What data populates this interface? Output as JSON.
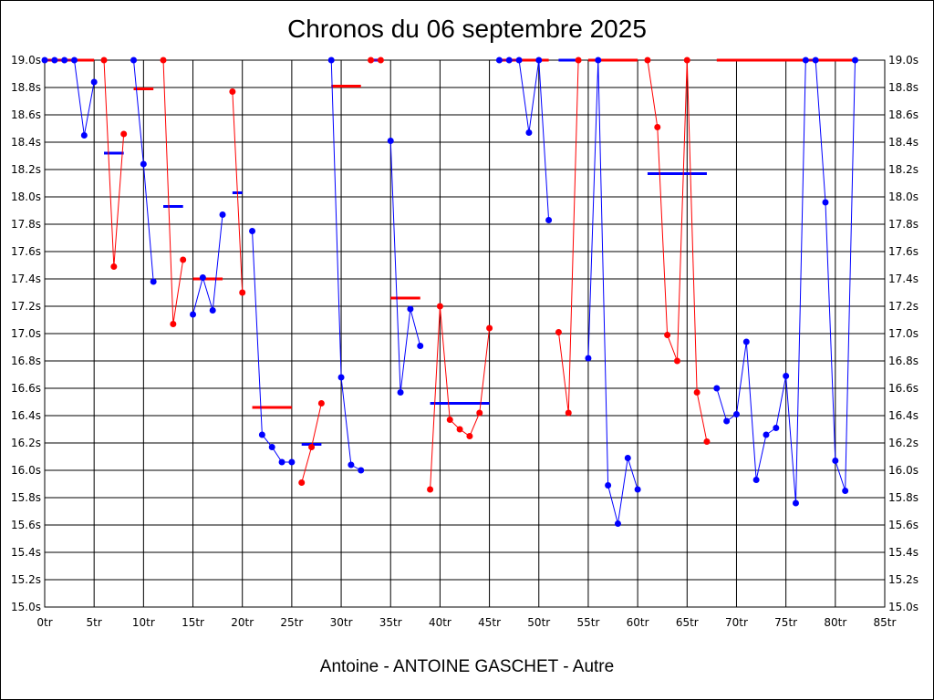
{
  "chart_data": {
    "type": "line",
    "title": "Chronos du 06 septembre 2025",
    "xlabel": "Antoine - ANTOINE GASCHET - Autre",
    "ylabel": "",
    "xlim": [
      0,
      85
    ],
    "ylim": [
      15.0,
      19.0
    ],
    "x_ticks": [
      0,
      5,
      10,
      15,
      20,
      25,
      30,
      35,
      40,
      45,
      50,
      55,
      60,
      65,
      70,
      75,
      80,
      85
    ],
    "x_tick_labels": [
      "0tr",
      "5tr",
      "10tr",
      "15tr",
      "20tr",
      "25tr",
      "30tr",
      "35tr",
      "40tr",
      "45tr",
      "50tr",
      "55tr",
      "60tr",
      "65tr",
      "70tr",
      "75tr",
      "80tr",
      "85tr"
    ],
    "y_ticks": [
      15.0,
      15.2,
      15.4,
      15.6,
      15.8,
      16.0,
      16.2,
      16.4,
      16.6,
      16.8,
      17.0,
      17.2,
      17.4,
      17.6,
      17.8,
      18.0,
      18.2,
      18.4,
      18.6,
      18.8,
      19.0
    ],
    "y_tick_labels": [
      "15.0s",
      "15.2s",
      "15.4s",
      "15.6s",
      "15.8s",
      "16.0s",
      "16.2s",
      "16.4s",
      "16.6s",
      "16.8s",
      "17.0s",
      "17.2s",
      "17.4s",
      "17.6s",
      "17.8s",
      "18.0s",
      "18.2s",
      "18.4s",
      "18.6s",
      "18.8s",
      "19.0s"
    ],
    "grid": true,
    "colors": {
      "blue": "#0000ff",
      "red": "#ff0000",
      "grid": "#000000"
    },
    "series": [
      {
        "color": "#0000ff",
        "points": [
          [
            0,
            19.0
          ],
          [
            1,
            19.0
          ],
          [
            2,
            19.0
          ],
          [
            3,
            19.0
          ],
          [
            4,
            18.45
          ],
          [
            5,
            18.84
          ]
        ]
      },
      {
        "color": "#ff0000",
        "points": [
          [
            6,
            19.0
          ],
          [
            7,
            17.49
          ],
          [
            8,
            18.46
          ]
        ]
      },
      {
        "color": "#0000ff",
        "points": [
          [
            9,
            19.0
          ],
          [
            10,
            18.24
          ],
          [
            11,
            17.38
          ]
        ]
      },
      {
        "color": "#ff0000",
        "points": [
          [
            12,
            19.0
          ],
          [
            13,
            17.07
          ],
          [
            14,
            17.54
          ]
        ]
      },
      {
        "color": "#0000ff",
        "points": [
          [
            15,
            17.14
          ],
          [
            16,
            17.41
          ],
          [
            17,
            17.17
          ],
          [
            18,
            17.87
          ]
        ]
      },
      {
        "color": "#ff0000",
        "points": [
          [
            19,
            18.77
          ],
          [
            20,
            17.3
          ]
        ]
      },
      {
        "color": "#0000ff",
        "points": [
          [
            21,
            17.75
          ],
          [
            22,
            16.26
          ],
          [
            23,
            16.17
          ],
          [
            24,
            16.06
          ],
          [
            25,
            16.06
          ]
        ]
      },
      {
        "color": "#ff0000",
        "points": [
          [
            26,
            15.91
          ],
          [
            27,
            16.17
          ],
          [
            28,
            16.49
          ]
        ]
      },
      {
        "color": "#0000ff",
        "points": [
          [
            29,
            19.0
          ],
          [
            30,
            16.68
          ],
          [
            31,
            16.04
          ],
          [
            32,
            16.0
          ]
        ]
      },
      {
        "color": "#ff0000",
        "points": [
          [
            33,
            19.0
          ],
          [
            34,
            19.0
          ]
        ]
      },
      {
        "color": "#0000ff",
        "points": [
          [
            35,
            18.41
          ],
          [
            36,
            16.57
          ],
          [
            37,
            17.18
          ],
          [
            38,
            16.91
          ]
        ]
      },
      {
        "color": "#ff0000",
        "points": [
          [
            39,
            15.86
          ],
          [
            40,
            17.2
          ],
          [
            41,
            16.37
          ],
          [
            42,
            16.3
          ],
          [
            43,
            16.25
          ],
          [
            44,
            16.42
          ],
          [
            45,
            17.04
          ]
        ]
      },
      {
        "color": "#0000ff",
        "points": [
          [
            46,
            19.0
          ],
          [
            47,
            19.0
          ],
          [
            48,
            19.0
          ],
          [
            49,
            18.47
          ],
          [
            50,
            19.0
          ],
          [
            51,
            17.83
          ]
        ]
      },
      {
        "color": "#ff0000",
        "points": [
          [
            52,
            17.01
          ],
          [
            53,
            16.42
          ],
          [
            54,
            19.0
          ]
        ]
      },
      {
        "color": "#0000ff",
        "points": [
          [
            55,
            16.82
          ],
          [
            56,
            19.0
          ],
          [
            57,
            15.89
          ],
          [
            58,
            15.61
          ],
          [
            59,
            16.09
          ],
          [
            60,
            15.86
          ]
        ]
      },
      {
        "color": "#ff0000",
        "points": [
          [
            61,
            19.0
          ],
          [
            62,
            18.51
          ],
          [
            63,
            16.99
          ],
          [
            64,
            16.8
          ],
          [
            65,
            19.0
          ],
          [
            66,
            16.57
          ],
          [
            67,
            16.21
          ]
        ]
      },
      {
        "color": "#0000ff",
        "points": [
          [
            68,
            16.6
          ],
          [
            69,
            16.36
          ],
          [
            70,
            16.41
          ],
          [
            71,
            16.94
          ],
          [
            72,
            15.93
          ],
          [
            73,
            16.26
          ],
          [
            74,
            16.31
          ],
          [
            75,
            16.69
          ],
          [
            76,
            15.76
          ],
          [
            77,
            19.0
          ],
          [
            78,
            19.0
          ],
          [
            79,
            17.96
          ],
          [
            80,
            16.07
          ],
          [
            81,
            15.85
          ],
          [
            82,
            19.0
          ]
        ]
      }
    ],
    "averages": [
      {
        "color": "#ff0000",
        "x": [
          0,
          5
        ],
        "y": 19.0
      },
      {
        "color": "#0000ff",
        "x": [
          6,
          8
        ],
        "y": 18.32
      },
      {
        "color": "#ff0000",
        "x": [
          9,
          11
        ],
        "y": 18.79
      },
      {
        "color": "#0000ff",
        "x": [
          12,
          14
        ],
        "y": 17.93
      },
      {
        "color": "#ff0000",
        "x": [
          15,
          18
        ],
        "y": 17.4
      },
      {
        "color": "#0000ff",
        "x": [
          19,
          20
        ],
        "y": 18.03
      },
      {
        "color": "#ff0000",
        "x": [
          21,
          25
        ],
        "y": 16.46
      },
      {
        "color": "#0000ff",
        "x": [
          26,
          28
        ],
        "y": 16.19
      },
      {
        "color": "#ff0000",
        "x": [
          29,
          32
        ],
        "y": 18.81
      },
      {
        "color": "#0000ff",
        "x": [
          33,
          34
        ],
        "y": 19.0
      },
      {
        "color": "#ff0000",
        "x": [
          35,
          38
        ],
        "y": 17.26
      },
      {
        "color": "#0000ff",
        "x": [
          39,
          45
        ],
        "y": 16.49
      },
      {
        "color": "#ff0000",
        "x": [
          46,
          51
        ],
        "y": 19.0
      },
      {
        "color": "#0000ff",
        "x": [
          52,
          54
        ],
        "y": 19.0
      },
      {
        "color": "#ff0000",
        "x": [
          55,
          60
        ],
        "y": 19.0
      },
      {
        "color": "#0000ff",
        "x": [
          61,
          67
        ],
        "y": 18.17
      },
      {
        "color": "#ff0000",
        "x": [
          68,
          82
        ],
        "y": 19.0
      }
    ]
  }
}
